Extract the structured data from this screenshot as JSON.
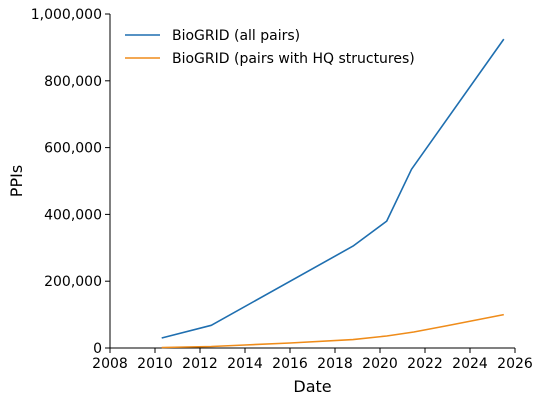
{
  "chart_data": {
    "type": "line",
    "xlabel": "Date",
    "ylabel": "PPIs",
    "xlim": [
      2008,
      2026
    ],
    "ylim": [
      0,
      1000000
    ],
    "x_ticks": [
      2008,
      2010,
      2012,
      2014,
      2016,
      2018,
      2020,
      2022,
      2024,
      2026
    ],
    "x_tick_labels": [
      "2008",
      "2010",
      "2012",
      "2014",
      "2016",
      "2018",
      "2020",
      "2022",
      "2024",
      "2026"
    ],
    "y_ticks": [
      0,
      200000,
      400000,
      600000,
      800000,
      1000000
    ],
    "y_tick_labels": [
      "0",
      "200,000",
      "400,000",
      "600,000",
      "800,000",
      "1,000,000"
    ],
    "grid": false,
    "legend_position": "top-left",
    "series": [
      {
        "name": "BioGRID (all pairs)",
        "color": "#1f6fb0",
        "x": [
          2010.3,
          2012.5,
          2018.8,
          2020.3,
          2021.4,
          2025.5
        ],
        "y": [
          30000,
          68000,
          305000,
          380000,
          535000,
          925000
        ]
      },
      {
        "name": "BioGRID (pairs with HQ structures)",
        "color": "#ef8c1a",
        "x": [
          2010.3,
          2012.5,
          2014.0,
          2016.0,
          2018.8,
          2020.3,
          2021.5,
          2023.0,
          2025.5
        ],
        "y": [
          1500,
          4500,
          9000,
          15000,
          25000,
          36000,
          48000,
          67000,
          100000
        ]
      }
    ]
  }
}
